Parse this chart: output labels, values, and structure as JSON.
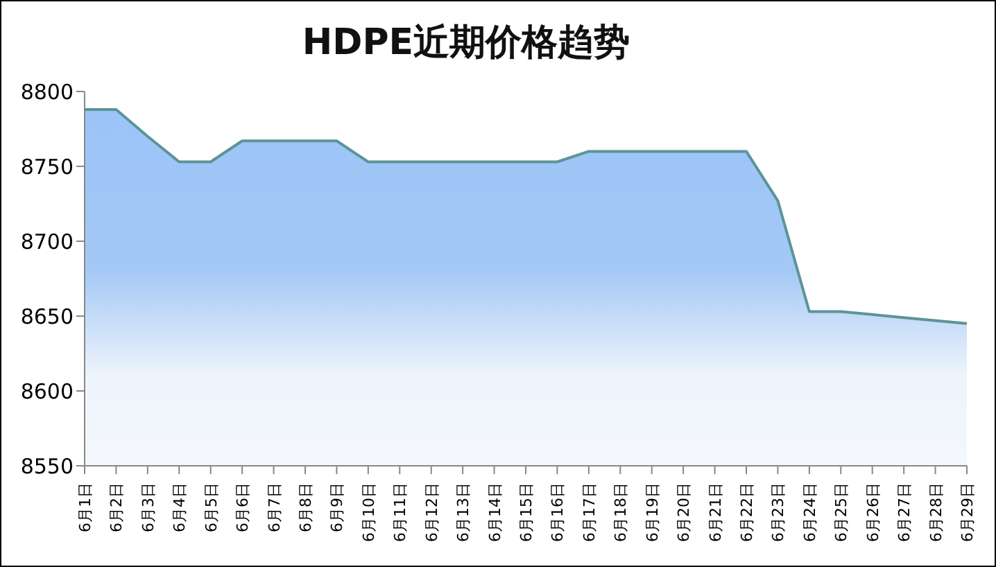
{
  "chart_data": {
    "type": "area",
    "title": "HDPE近期价格趋势",
    "categories": [
      "6月1日",
      "6月2日",
      "6月3日",
      "6月4日",
      "6月5日",
      "6月6日",
      "6月7日",
      "6月8日",
      "6月9日",
      "6月10日",
      "6月11日",
      "6月12日",
      "6月13日",
      "6月14日",
      "6月15日",
      "6月16日",
      "6月17日",
      "6月18日",
      "6月19日",
      "6月20日",
      "6月21日",
      "6月22日",
      "6月23日",
      "6月24日",
      "6月25日",
      "6月26日",
      "6月27日",
      "6月28日",
      "6月29日"
    ],
    "color": "#5b9499",
    "values": [
      8788,
      8788,
      8770,
      8753,
      8753,
      8767,
      8767,
      8767,
      8767,
      8753,
      8753,
      8753,
      8753,
      8753,
      8753,
      8753,
      8760,
      8760,
      8760,
      8760,
      8760,
      8760,
      8727,
      8653,
      8653,
      8651,
      8649,
      8647,
      8645
    ],
    "ylim": [
      8550,
      8800
    ],
    "yticks": [
      8550,
      8600,
      8650,
      8700,
      8750,
      8800
    ],
    "grid": false,
    "legend": false
  }
}
